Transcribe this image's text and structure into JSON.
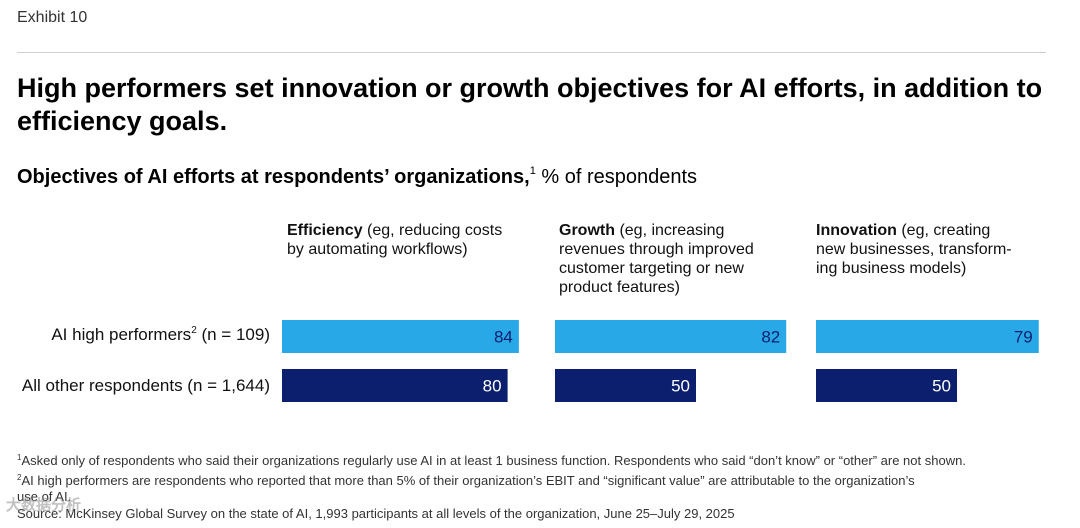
{
  "exhibit": "Exhibit 10",
  "title": "High performers set innovation or growth objectives for AI efforts, in addition to efficiency goals.",
  "subtitle": {
    "bold": "Objectives of AI efforts at respondents’ organizations,",
    "sup": "1",
    "rest": " % of respondents"
  },
  "colors": {
    "high_performers": "#29a8e8",
    "others": "#0b1f6e"
  },
  "chart_data": {
    "type": "bar",
    "categories": [
      "Efficiency",
      "Growth",
      "Innovation"
    ],
    "category_descriptions": [
      "(eg, reducing costs by automating workflows)",
      "(eg, increasing revenues through improved customer targeting or new product features)",
      "(eg, creating new businesses, transforming business models)"
    ],
    "series": [
      {
        "name": "AI high performers",
        "name_sup": "2",
        "name_suffix": " (n = 109)",
        "values": [
          84,
          82,
          79
        ]
      },
      {
        "name": "All other respondents (n = 1,644)",
        "values": [
          80,
          50,
          50
        ]
      }
    ],
    "xlim": [
      0,
      100
    ]
  },
  "column_heads": [
    {
      "line1_bold": "Efficiency",
      "line1_rest": " (eg, reducing costs",
      "lines": [
        "by automating workflows)"
      ]
    },
    {
      "line1_bold": "Growth",
      "line1_rest": " (eg, increasing",
      "lines": [
        "revenues through improved",
        "customer targeting or new",
        "product features)"
      ]
    },
    {
      "line1_bold": "Innovation",
      "line1_rest": " (eg, creating",
      "lines": [
        "new businesses, transform-",
        "ing business models)"
      ]
    }
  ],
  "footnotes": {
    "fn1_sup": "1",
    "fn1": "Asked only of respondents who said their organizations regularly use AI in at least 1 business function. Respondents who said “don’t know” or “other” are not shown.",
    "fn2_sup": "2",
    "fn2a": "AI high performers are respondents who reported that more than 5% of their organization’s EBIT and “significant value” are attributable to the organization’s",
    "fn2b": "use of AI.",
    "source": "Source: McKinsey Global Survey on the state of AI, 1,993 participants at all levels of the organization, June 25–July 29, 2025"
  },
  "watermark": "大数据分析"
}
